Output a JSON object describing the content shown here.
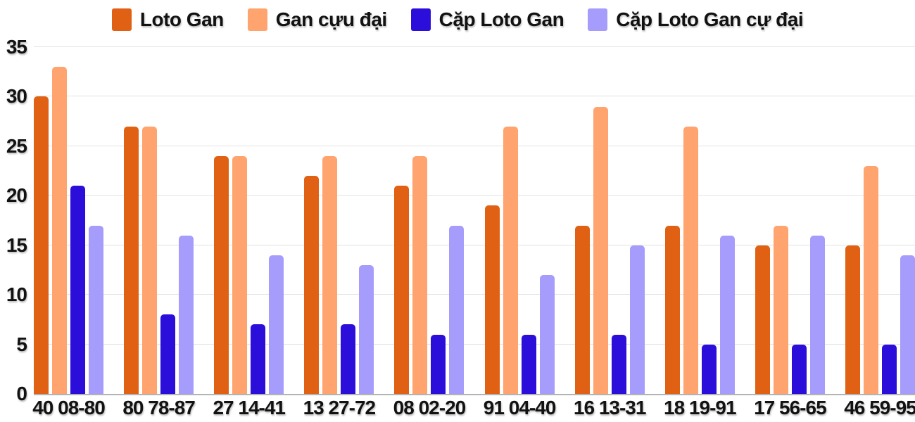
{
  "chart_data": {
    "type": "bar",
    "title": "",
    "xlabel": "",
    "ylabel": "",
    "categories": [
      "40 08-80",
      "80 78-87",
      "27 14-41",
      "13 27-72",
      "08 02-20",
      "91 04-40",
      "16 13-31",
      "18 19-91",
      "17 56-65",
      "46 59-95"
    ],
    "series": [
      {
        "name": "Loto Gan",
        "color": "#E06113",
        "values": [
          30,
          27,
          24,
          22,
          21,
          19,
          17,
          17,
          15,
          15
        ]
      },
      {
        "name": "Gan cựu đại",
        "color": "#FFA46E",
        "values": [
          33,
          27,
          24,
          24,
          24,
          27,
          29,
          27,
          17,
          23
        ]
      },
      {
        "name": "Cặp Loto Gan",
        "color": "#2B0EDA",
        "values": [
          21,
          8,
          7,
          7,
          6,
          6,
          6,
          5,
          5,
          5
        ]
      },
      {
        "name": "Cặp Loto Gan cự đại",
        "color": "#A59CFB",
        "values": [
          17,
          16,
          14,
          13,
          17,
          12,
          15,
          16,
          16,
          14
        ]
      }
    ],
    "ylim": [
      0,
      35
    ],
    "yticks": [
      0,
      5,
      10,
      15,
      20,
      25,
      30,
      35
    ],
    "grid": true,
    "legend_position": "top"
  },
  "styles": {
    "grid_color": "#E3E3E3",
    "axis_color": "#B3B3B3",
    "text_color": "#121212",
    "background": "#FFFFFF"
  }
}
